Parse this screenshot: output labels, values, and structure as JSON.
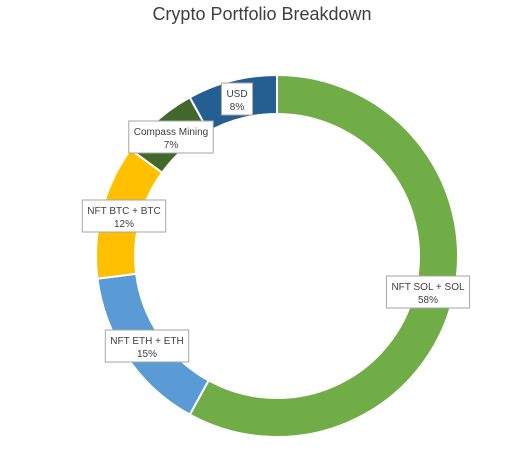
{
  "chart_data": {
    "type": "pie",
    "title": "Crypto Portfolio Breakdown",
    "style": "doughnut",
    "legend": "none",
    "categories": [
      "NFT SOL + SOL",
      "NFT ETH + ETH",
      "NFT BTC + BTC",
      "Compass Mining",
      "USD"
    ],
    "values": [
      58,
      15,
      12,
      7,
      8
    ],
    "value_labels": [
      "58%",
      "15%",
      "12%",
      "7%",
      "8%"
    ],
    "colors": [
      "#70AD47",
      "#5B9BD5",
      "#FFC000",
      "#43682B",
      "#255E91"
    ]
  }
}
